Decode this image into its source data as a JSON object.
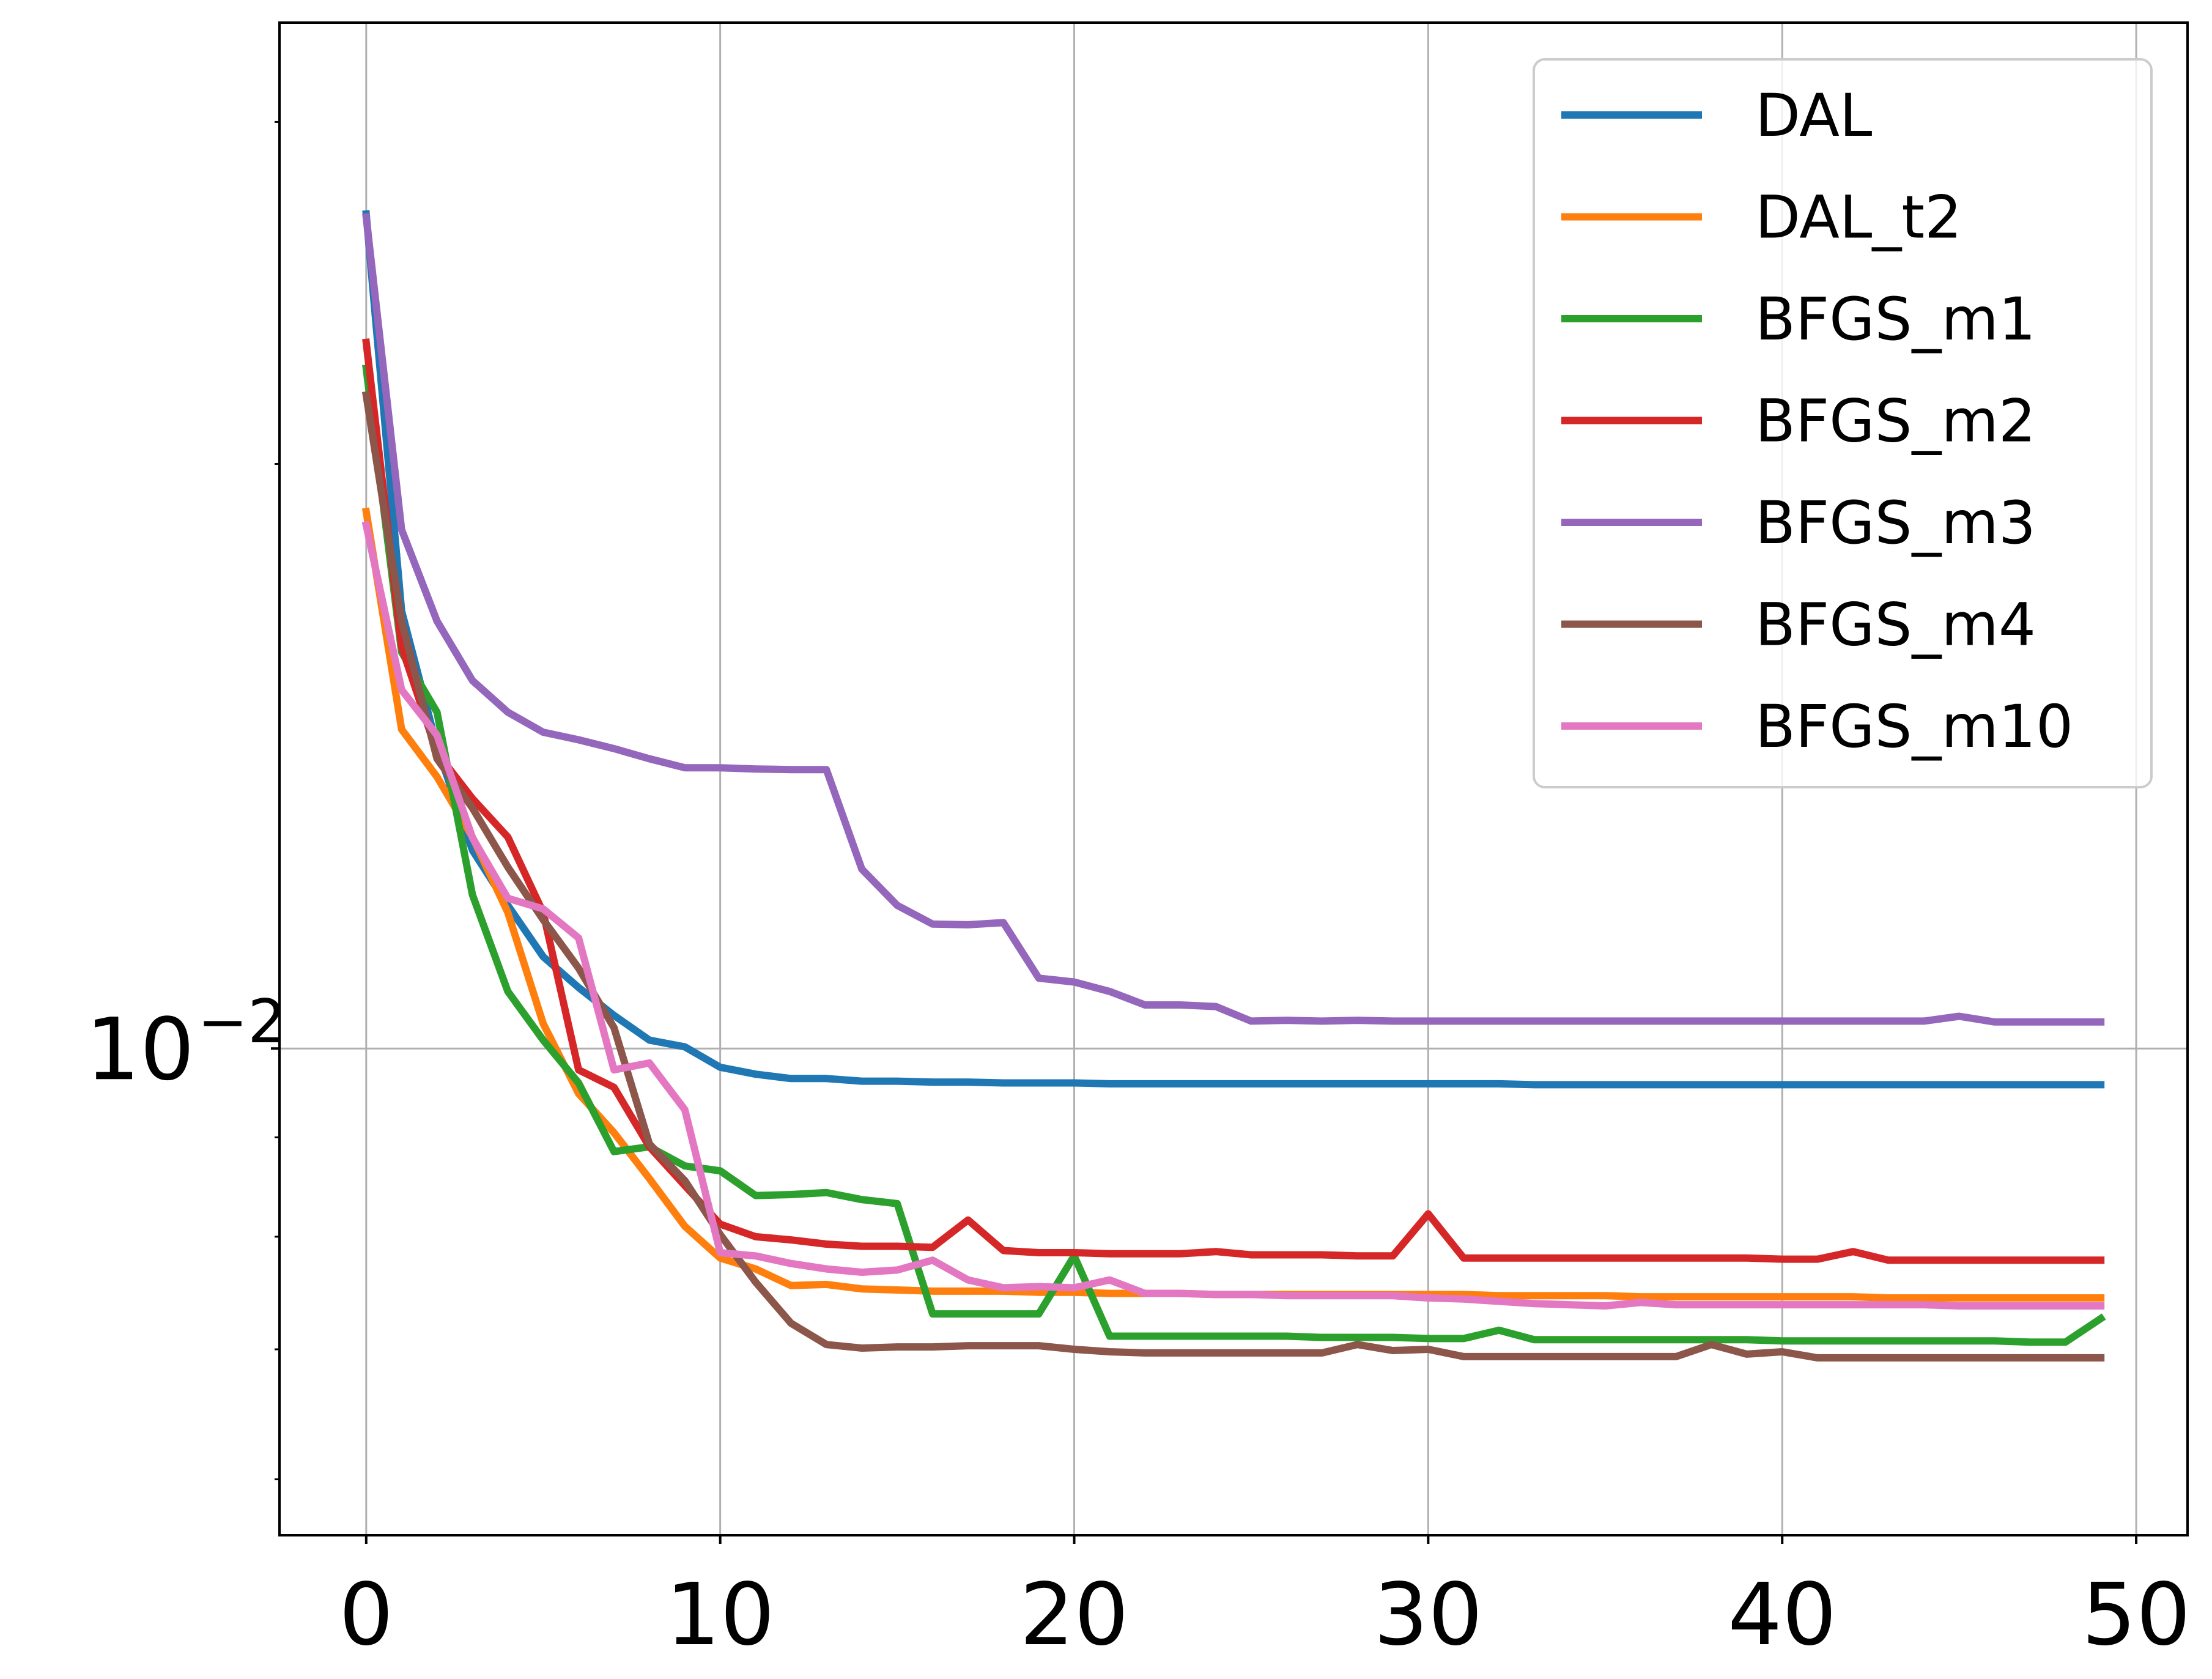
{
  "chart_data": {
    "type": "line",
    "title": "",
    "xlabel": "",
    "ylabel": "",
    "xlim": [
      -2.45,
      51.45
    ],
    "ylim": [
      0.005615,
      0.03375
    ],
    "yscale": "log",
    "grid": true,
    "legend_position": "top-right",
    "x_ticks": [
      "0",
      "10",
      "20",
      "30",
      "40",
      "50"
    ],
    "x_tick_values": [
      0,
      10,
      20,
      30,
      40,
      50
    ],
    "y_ticks": [
      {
        "base": "10",
        "exponent": "−2",
        "value": 0.01
      }
    ],
    "y_minor_tick_values": [
      0.006,
      0.007,
      0.008,
      0.009,
      0.02,
      0.03
    ],
    "series": [
      {
        "name": "DAL",
        "color": "#1f77b4",
        "values": [
          0.0269,
          0.0168,
          0.0143,
          0.01265,
          0.01185,
          0.01115,
          0.01075,
          0.0104,
          0.0101,
          0.01002,
          0.00978,
          0.0097,
          0.00965,
          0.00965,
          0.00962,
          0.00962,
          0.00961,
          0.00961,
          0.0096,
          0.0096,
          0.0096,
          0.00959,
          0.00959,
          0.00959,
          0.00959,
          0.00959,
          0.00959,
          0.00959,
          0.00959,
          0.00959,
          0.00959,
          0.00959,
          0.00959,
          0.00958,
          0.00958,
          0.00958,
          0.00958,
          0.00958,
          0.00958,
          0.00958,
          0.00958,
          0.00958,
          0.00958,
          0.00958,
          0.00958,
          0.00958,
          0.00958,
          0.00958,
          0.00958,
          0.00958
        ]
      },
      {
        "name": "DAL_t2",
        "color": "#ff7f0e",
        "values": [
          0.0189,
          0.0146,
          0.0138,
          0.01285,
          0.01175,
          0.0103,
          0.00948,
          0.00905,
          0.00857,
          0.0081,
          0.0078,
          0.0077,
          0.00755,
          0.00756,
          0.00752,
          0.00751,
          0.0075,
          0.0075,
          0.0075,
          0.00749,
          0.00749,
          0.00748,
          0.00748,
          0.00748,
          0.00747,
          0.00747,
          0.00747,
          0.00747,
          0.00747,
          0.00747,
          0.00747,
          0.00747,
          0.00746,
          0.00746,
          0.00746,
          0.00746,
          0.00745,
          0.00745,
          0.00745,
          0.00745,
          0.00745,
          0.00745,
          0.00745,
          0.00744,
          0.00744,
          0.00744,
          0.00744,
          0.00744,
          0.00744,
          0.00744
        ]
      },
      {
        "name": "BFGS_m1",
        "color": "#2ca02c",
        "values": [
          0.0224,
          0.016,
          0.0149,
          0.012,
          0.0107,
          0.0101,
          0.0096,
          0.00885,
          0.0089,
          0.0087,
          0.00865,
          0.0084,
          0.00841,
          0.00843,
          0.00836,
          0.00832,
          0.0073,
          0.0073,
          0.0073,
          0.0073,
          0.00782,
          0.00711,
          0.00711,
          0.00711,
          0.00711,
          0.00711,
          0.00711,
          0.0071,
          0.0071,
          0.0071,
          0.00709,
          0.00709,
          0.00716,
          0.00708,
          0.00708,
          0.00708,
          0.00708,
          0.00708,
          0.00708,
          0.00708,
          0.00707,
          0.00707,
          0.00707,
          0.00707,
          0.00707,
          0.00707,
          0.00707,
          0.00706,
          0.00706,
          0.00726
        ]
      },
      {
        "name": "BFGS_m2",
        "color": "#d62728",
        "values": [
          0.0231,
          0.0161,
          0.0142,
          0.01345,
          0.01285,
          0.01175,
          0.00975,
          0.00955,
          0.0089,
          0.0085,
          0.00812,
          0.008,
          0.00797,
          0.00793,
          0.00791,
          0.00791,
          0.0079,
          0.00816,
          0.00787,
          0.00785,
          0.00785,
          0.00784,
          0.00784,
          0.00784,
          0.00786,
          0.00783,
          0.00783,
          0.00783,
          0.00782,
          0.00782,
          0.00822,
          0.0078,
          0.0078,
          0.0078,
          0.0078,
          0.0078,
          0.0078,
          0.0078,
          0.0078,
          0.0078,
          0.00779,
          0.00779,
          0.00786,
          0.00778,
          0.00778,
          0.00778,
          0.00778,
          0.00778,
          0.00778,
          0.00778
        ]
      },
      {
        "name": "BFGS_m3",
        "color": "#9467bd",
        "values": [
          0.0268,
          0.0185,
          0.0166,
          0.01547,
          0.0149,
          0.01455,
          0.01442,
          0.01427,
          0.0141,
          0.01395,
          0.01395,
          0.01393,
          0.01392,
          0.01392,
          0.01237,
          0.01185,
          0.01159,
          0.01158,
          0.01161,
          0.01087,
          0.01082,
          0.0107,
          0.01053,
          0.01053,
          0.01051,
          0.01033,
          0.01034,
          0.01033,
          0.01034,
          0.01033,
          0.01033,
          0.01033,
          0.01033,
          0.01033,
          0.01033,
          0.01033,
          0.01033,
          0.01033,
          0.01033,
          0.01033,
          0.01033,
          0.01033,
          0.01033,
          0.01033,
          0.01033,
          0.01039,
          0.01032,
          0.01032,
          0.01032,
          0.01032
        ]
      },
      {
        "name": "BFGS_m4",
        "color": "#8c564b",
        "values": [
          0.0217,
          0.0166,
          0.0141,
          0.0133,
          0.0124,
          0.01165,
          0.011,
          0.01025,
          0.00893,
          0.00855,
          0.00802,
          0.00758,
          0.00722,
          0.00704,
          0.00701,
          0.00702,
          0.00702,
          0.00703,
          0.00703,
          0.00703,
          0.007,
          0.00698,
          0.00697,
          0.00697,
          0.00697,
          0.00697,
          0.00697,
          0.00697,
          0.00704,
          0.00699,
          0.007,
          0.00694,
          0.00694,
          0.00694,
          0.00694,
          0.00694,
          0.00694,
          0.00694,
          0.00704,
          0.00696,
          0.00698,
          0.00693,
          0.00693,
          0.00693,
          0.00693,
          0.00693,
          0.00693,
          0.00693,
          0.00693,
          0.00693
        ]
      },
      {
        "name": "BFGS_m10",
        "color": "#e377c2",
        "values": [
          0.0186,
          0.0153,
          0.0145,
          0.01284,
          0.01195,
          0.0118,
          0.0114,
          0.00975,
          0.00983,
          0.0093,
          0.00785,
          0.00782,
          0.00775,
          0.0077,
          0.00767,
          0.00769,
          0.00778,
          0.0076,
          0.00753,
          0.00754,
          0.00753,
          0.0076,
          0.00748,
          0.00748,
          0.00747,
          0.00747,
          0.00746,
          0.00746,
          0.00746,
          0.00746,
          0.00744,
          0.00743,
          0.00741,
          0.00739,
          0.00738,
          0.00737,
          0.0074,
          0.00738,
          0.00738,
          0.00738,
          0.00738,
          0.00738,
          0.00738,
          0.00738,
          0.00738,
          0.00737,
          0.00737,
          0.00737,
          0.00737,
          0.00737
        ]
      }
    ]
  }
}
